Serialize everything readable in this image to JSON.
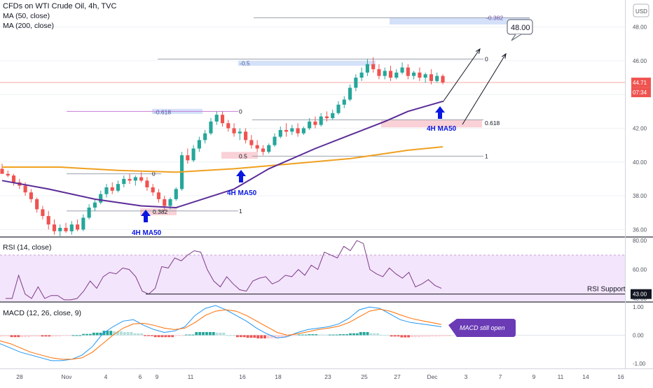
{
  "header": {
    "title": "CFDs on WTI Crude Oil, 4h, TVC",
    "ma50_label": "MA (50, close)",
    "ma200_label": "MA (200, close)",
    "currency_button": "USD"
  },
  "colors": {
    "up": "#26a69a",
    "down": "#ef5350",
    "ma50": "#5b2c97",
    "ma200": "#f0a020",
    "rsi_line": "#7e3b8a",
    "rsi_band": "#f3e5fb",
    "macd_line": "#2196f3",
    "signal_line": "#ff6d00",
    "fib_blue_box": "#c9daf8",
    "fib_red_box": "#f7c5cc",
    "badge_bg": "#6a3bb5",
    "arrow_blue": "#0a17e0",
    "price_tag": "#ef5350"
  },
  "chart_data": [
    {
      "type": "candlestick",
      "name": "price",
      "ylim": [
        35.6,
        49.6
      ],
      "y_ticks": [
        "36.00",
        "38.00",
        "40.00",
        "42.00",
        "44.00",
        "46.00",
        "48.00"
      ],
      "x_ticks": [
        "28",
        "Nov",
        "4",
        "6",
        "9",
        "11",
        "16",
        "18",
        "23",
        "25",
        "27",
        "Dec",
        "3",
        "7",
        "9",
        "11",
        "14",
        "16"
      ],
      "last_price": "44.71",
      "countdown": "07:34",
      "candles": [
        [
          39.6,
          39.9,
          39.4,
          39.3
        ],
        [
          39.3,
          39.5,
          39.1,
          39.2
        ],
        [
          39.2,
          39.3,
          38.6,
          38.8
        ],
        [
          38.8,
          39.0,
          38.4,
          38.6
        ],
        [
          38.6,
          38.8,
          38.0,
          38.2
        ],
        [
          38.2,
          38.4,
          37.6,
          37.8
        ],
        [
          37.8,
          37.9,
          37.0,
          37.2
        ],
        [
          37.2,
          37.4,
          36.6,
          36.8
        ],
        [
          36.8,
          37.1,
          36.0,
          36.3
        ],
        [
          36.3,
          36.6,
          35.7,
          35.9
        ],
        [
          35.9,
          36.3,
          35.6,
          36.1
        ],
        [
          36.1,
          36.4,
          35.8,
          35.9
        ],
        [
          35.9,
          36.5,
          35.7,
          36.3
        ],
        [
          36.3,
          36.6,
          35.9,
          36.0
        ],
        [
          36.0,
          36.9,
          35.9,
          36.7
        ],
        [
          36.7,
          37.5,
          36.6,
          37.3
        ],
        [
          37.3,
          37.8,
          37.1,
          37.6
        ],
        [
          37.6,
          38.3,
          37.5,
          38.1
        ],
        [
          38.1,
          38.7,
          37.9,
          38.5
        ],
        [
          38.5,
          38.8,
          38.1,
          38.3
        ],
        [
          38.3,
          38.9,
          38.2,
          38.7
        ],
        [
          38.7,
          39.2,
          38.5,
          39.0
        ],
        [
          39.0,
          39.3,
          38.7,
          38.9
        ],
        [
          38.9,
          39.2,
          38.6,
          39.1
        ],
        [
          39.1,
          39.4,
          38.8,
          38.9
        ],
        [
          38.9,
          39.1,
          38.3,
          38.5
        ],
        [
          38.5,
          38.7,
          38.0,
          38.2
        ],
        [
          38.2,
          38.4,
          37.6,
          37.8
        ],
        [
          37.8,
          38.0,
          37.1,
          37.4
        ],
        [
          37.4,
          37.9,
          37.2,
          37.8
        ],
        [
          37.8,
          38.5,
          37.7,
          38.4
        ],
        [
          38.4,
          40.6,
          38.3,
          40.4
        ],
        [
          40.4,
          40.8,
          39.9,
          40.1
        ],
        [
          40.1,
          41.0,
          40.0,
          40.8
        ],
        [
          40.8,
          41.5,
          40.6,
          41.3
        ],
        [
          41.3,
          41.9,
          41.1,
          41.7
        ],
        [
          41.7,
          42.6,
          41.6,
          42.4
        ],
        [
          42.4,
          43.0,
          42.2,
          42.8
        ],
        [
          42.8,
          43.0,
          42.1,
          42.3
        ],
        [
          42.3,
          42.5,
          41.8,
          42.0
        ],
        [
          42.0,
          42.3,
          41.5,
          41.7
        ],
        [
          41.7,
          42.0,
          41.3,
          41.8
        ],
        [
          41.8,
          42.0,
          41.1,
          41.3
        ],
        [
          41.3,
          41.6,
          40.8,
          41.0
        ],
        [
          41.0,
          41.3,
          40.6,
          40.8
        ],
        [
          40.8,
          41.0,
          40.4,
          40.6
        ],
        [
          40.6,
          41.1,
          40.5,
          41.0
        ],
        [
          41.0,
          41.7,
          40.9,
          41.5
        ],
        [
          41.5,
          42.1,
          41.4,
          41.9
        ],
        [
          41.9,
          42.3,
          41.5,
          41.8
        ],
        [
          41.8,
          42.2,
          41.6,
          42.0
        ],
        [
          42.0,
          42.3,
          41.5,
          41.7
        ],
        [
          41.7,
          42.1,
          41.6,
          42.0
        ],
        [
          42.0,
          42.6,
          41.9,
          42.4
        ],
        [
          42.4,
          42.7,
          42.0,
          42.2
        ],
        [
          42.2,
          42.9,
          42.1,
          42.7
        ],
        [
          42.7,
          43.0,
          42.4,
          42.6
        ],
        [
          42.6,
          43.1,
          42.5,
          42.9
        ],
        [
          42.9,
          43.6,
          42.8,
          43.4
        ],
        [
          43.4,
          43.9,
          43.2,
          43.7
        ],
        [
          43.7,
          44.6,
          43.6,
          44.4
        ],
        [
          44.4,
          45.2,
          44.2,
          45.0
        ],
        [
          45.0,
          45.6,
          44.8,
          45.3
        ],
        [
          45.3,
          46.1,
          45.1,
          45.8
        ],
        [
          45.8,
          46.2,
          45.3,
          45.5
        ],
        [
          45.5,
          45.8,
          44.9,
          45.1
        ],
        [
          45.1,
          45.6,
          44.9,
          45.4
        ],
        [
          45.4,
          45.7,
          44.8,
          45.0
        ],
        [
          45.0,
          45.5,
          44.9,
          45.3
        ],
        [
          45.3,
          45.9,
          45.2,
          45.6
        ],
        [
          45.6,
          45.8,
          44.9,
          45.1
        ],
        [
          45.1,
          45.4,
          44.9,
          45.3
        ],
        [
          45.3,
          45.6,
          44.8,
          45.0
        ],
        [
          45.0,
          45.3,
          44.7,
          45.2
        ],
        [
          45.2,
          45.5,
          44.6,
          44.8
        ],
        [
          44.8,
          45.3,
          44.7,
          45.1
        ],
        [
          45.1,
          45.2,
          44.6,
          44.71
        ]
      ],
      "ma50": [
        [
          0,
          38.9
        ],
        [
          8,
          38.4
        ],
        [
          16,
          37.8
        ],
        [
          24,
          37.4
        ],
        [
          30,
          37.3
        ],
        [
          40,
          38.4
        ],
        [
          46,
          39.6
        ],
        [
          54,
          40.8
        ],
        [
          60,
          41.6
        ],
        [
          66,
          42.4
        ],
        [
          70,
          43.0
        ],
        [
          76,
          43.6
        ]
      ],
      "ma200": [
        [
          0,
          39.7
        ],
        [
          10,
          39.7
        ],
        [
          20,
          39.5
        ],
        [
          30,
          39.4
        ],
        [
          40,
          39.6
        ],
        [
          50,
          39.9
        ],
        [
          60,
          40.2
        ],
        [
          66,
          40.5
        ],
        [
          70,
          40.7
        ],
        [
          76,
          40.9
        ]
      ],
      "annotations": {
        "fib_labels_left": [
          "-0.618",
          "-0.5",
          "0.382",
          "0.5",
          "0"
        ],
        "fib_labels_right": [
          "0",
          "1",
          "0.618",
          "1",
          "-0.382",
          "0"
        ],
        "callout_price": "48.00",
        "ma_labels": [
          "4H MA50",
          "4H MA50",
          "4H MA50"
        ]
      }
    },
    {
      "type": "line",
      "name": "RSI (14, close)",
      "ylim": [
        38,
        82
      ],
      "y_ticks": [
        "80.00",
        "60.00",
        "40.00"
      ],
      "support_value": "43.00",
      "support_label": "RSI Support",
      "values": [
        40,
        40,
        56,
        43,
        40,
        48,
        40,
        42,
        42,
        39,
        39,
        40,
        45,
        52,
        47,
        55,
        58,
        57,
        61,
        60,
        55,
        45,
        43,
        47,
        62,
        61,
        68,
        66,
        70,
        73,
        72,
        60,
        52,
        48,
        55,
        50,
        46,
        45,
        52,
        54,
        55,
        50,
        52,
        56,
        55,
        60,
        56,
        63,
        60,
        72,
        70,
        68,
        76,
        73,
        80,
        78,
        60,
        57,
        55,
        61,
        57,
        54,
        58,
        48,
        50,
        53,
        49,
        47
      ]
    },
    {
      "type": "line",
      "name": "MACD (12, 26, close, 9)",
      "ylim": [
        -1.15,
        1.15
      ],
      "y_ticks": [
        "1.00",
        "0.00",
        "-1.00"
      ],
      "badge": "MACD still open",
      "macd": [
        -0.3,
        -0.45,
        -0.6,
        -0.7,
        -0.8,
        -0.9,
        -0.9,
        -0.85,
        -0.7,
        -0.4,
        0.05,
        0.3,
        0.5,
        0.55,
        0.35,
        0.2,
        0.1,
        0.15,
        0.3,
        0.7,
        0.95,
        1.05,
        0.9,
        0.7,
        0.5,
        0.25,
        0.05,
        -0.1,
        -0.05,
        0.1,
        0.2,
        0.25,
        0.3,
        0.4,
        0.6,
        0.9,
        1.0,
        0.95,
        0.75,
        0.55,
        0.45,
        0.4,
        0.35,
        0.3
      ],
      "signal": [
        -0.2,
        -0.3,
        -0.45,
        -0.6,
        -0.7,
        -0.8,
        -0.85,
        -0.85,
        -0.8,
        -0.6,
        -0.3,
        0.0,
        0.25,
        0.4,
        0.42,
        0.35,
        0.25,
        0.2,
        0.25,
        0.45,
        0.7,
        0.85,
        0.9,
        0.85,
        0.7,
        0.5,
        0.3,
        0.1,
        0.0,
        0.05,
        0.12,
        0.2,
        0.25,
        0.32,
        0.45,
        0.65,
        0.85,
        0.92,
        0.85,
        0.72,
        0.6,
        0.52,
        0.45,
        0.38
      ]
    }
  ]
}
